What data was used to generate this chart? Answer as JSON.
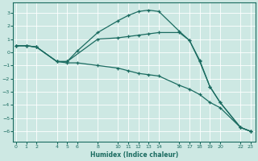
{
  "xlabel": "Humidex (Indice chaleur)",
  "bg_color": "#cde8e3",
  "line_color": "#1a6b60",
  "grid_color": "#ffffff",
  "lines": [
    {
      "x": [
        0,
        1,
        2,
        4,
        5,
        6,
        8,
        10,
        11,
        12,
        13,
        14,
        16,
        17,
        18,
        19,
        20,
        22,
        23
      ],
      "y": [
        0.5,
        0.5,
        0.4,
        -0.7,
        -0.7,
        0.1,
        1.5,
        2.4,
        2.8,
        3.1,
        3.2,
        3.1,
        1.6,
        0.9,
        -0.7,
        -2.6,
        -3.8,
        -5.7,
        -6.0
      ]
    },
    {
      "x": [
        0,
        1,
        2,
        4,
        5,
        8,
        10,
        11,
        12,
        13,
        14,
        16,
        17,
        18,
        19,
        20,
        22,
        23
      ],
      "y": [
        0.5,
        0.5,
        0.4,
        -0.7,
        -0.7,
        1.0,
        1.1,
        1.2,
        1.3,
        1.4,
        1.5,
        1.5,
        0.9,
        -0.6,
        -2.6,
        -3.8,
        -5.7,
        -6.0
      ]
    },
    {
      "x": [
        0,
        1,
        2,
        4,
        5,
        6,
        8,
        10,
        11,
        12,
        13,
        14,
        16,
        17,
        18,
        19,
        20,
        22,
        23
      ],
      "y": [
        0.5,
        0.5,
        0.4,
        -0.7,
        -0.8,
        -0.8,
        -1.0,
        -1.2,
        -1.4,
        -1.6,
        -1.7,
        -1.8,
        -2.5,
        -2.8,
        -3.2,
        -3.8,
        -4.2,
        -5.7,
        -6.0
      ]
    }
  ],
  "xticks": [
    0,
    1,
    2,
    4,
    5,
    6,
    8,
    10,
    11,
    12,
    13,
    14,
    16,
    17,
    18,
    19,
    20,
    22,
    23
  ],
  "xlim": [
    -0.3,
    23.5
  ],
  "ylim": [
    -6.8,
    3.8
  ],
  "yticks": [
    -6,
    -5,
    -4,
    -3,
    -2,
    -1,
    0,
    1,
    2,
    3
  ]
}
